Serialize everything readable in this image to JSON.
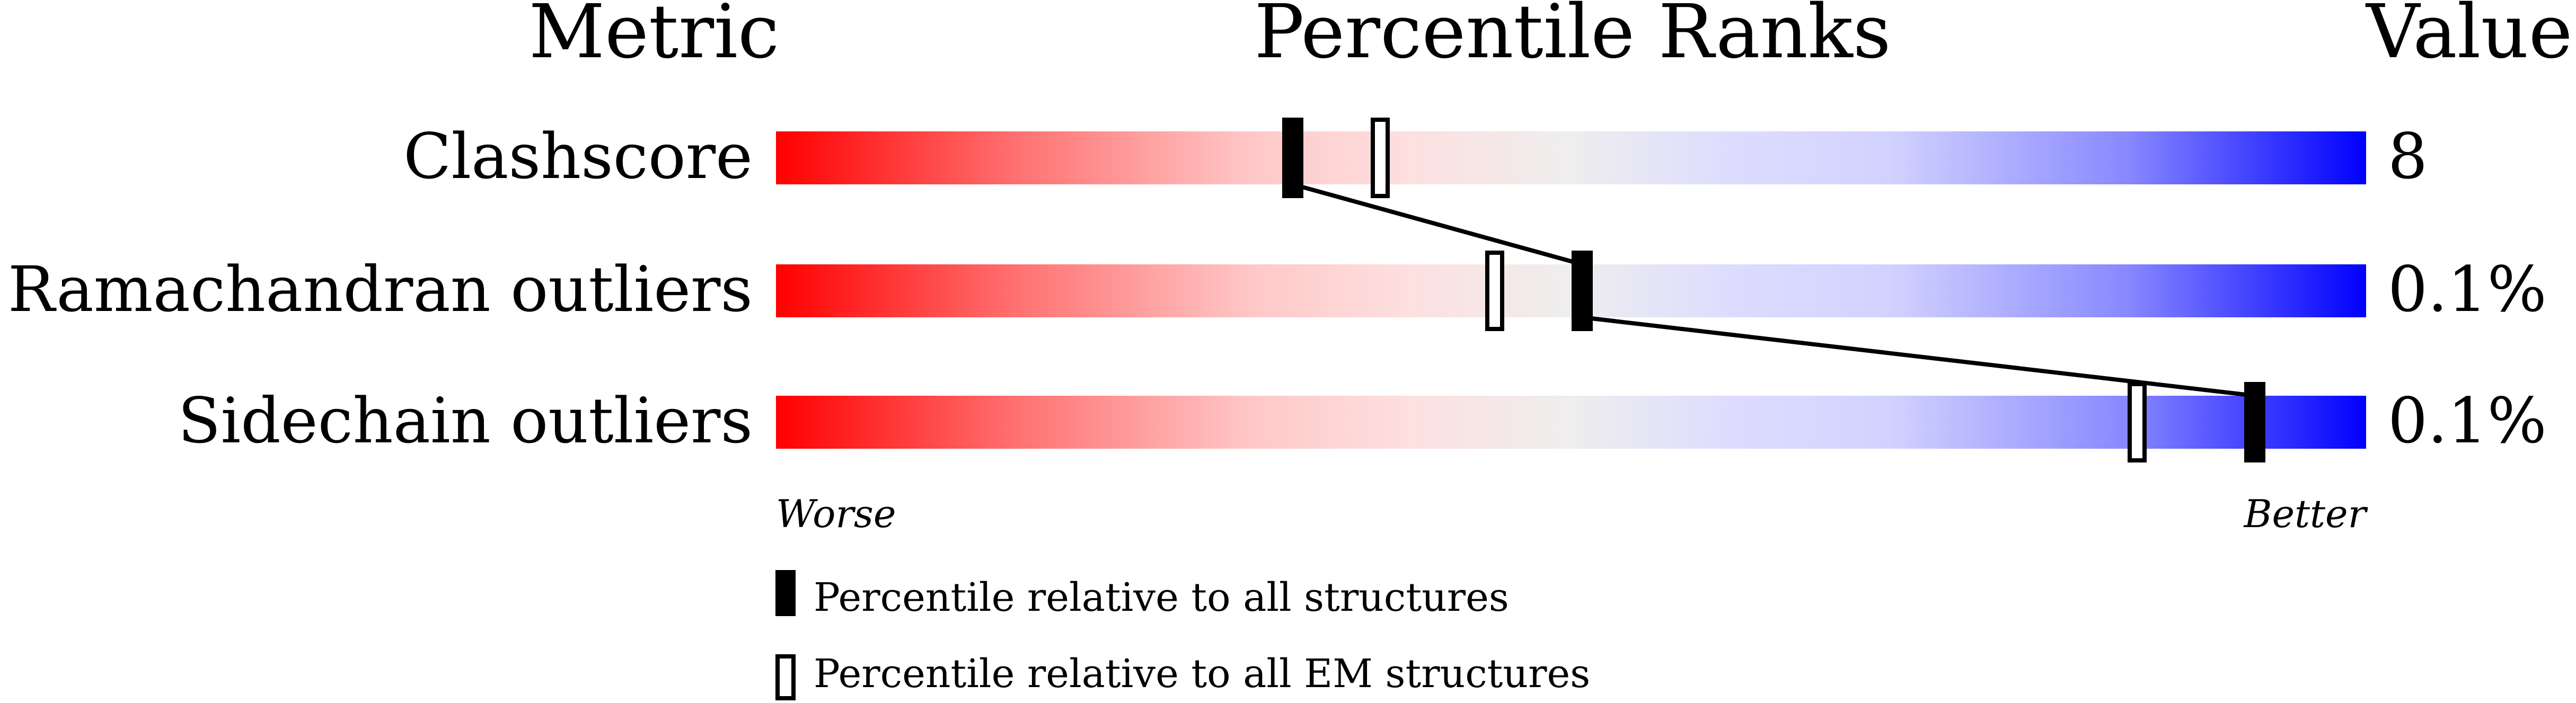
{
  "chart_data": {
    "type": "percentile-bar",
    "headers": {
      "metric": "Metric",
      "ranks": "Percentile Ranks",
      "value": "Value"
    },
    "xlim": [
      0,
      100
    ],
    "scale_labels": {
      "worse": "Worse",
      "better": "Better"
    },
    "gradient_colors": [
      "#ff0000",
      "#eeeeee",
      "#0000ff"
    ],
    "rows": [
      {
        "metric": "Clashscore",
        "value": "8",
        "percentile_all": 32.5,
        "percentile_em": 38
      },
      {
        "metric": "Ramachandran outliers",
        "value": "0.1%",
        "percentile_all": 50.7,
        "percentile_em": 45.2
      },
      {
        "metric": "Sidechain outliers",
        "value": "0.1%",
        "percentile_all": 93,
        "percentile_em": 85.6
      }
    ],
    "legend": [
      {
        "marker": "filled",
        "label": "Percentile relative to all structures"
      },
      {
        "marker": "open",
        "label": "Percentile relative to all EM structures"
      }
    ]
  }
}
